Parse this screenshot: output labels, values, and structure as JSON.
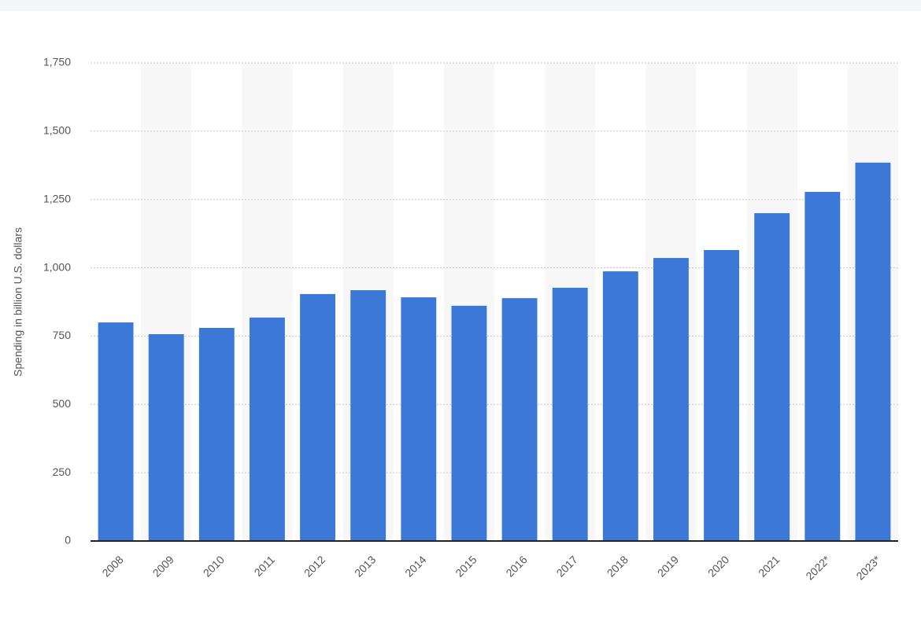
{
  "chart_data": {
    "type": "bar",
    "y_axis_label": "Spending in billion U.S. dollars",
    "categories": [
      "2008",
      "2009",
      "2010",
      "2011",
      "2012",
      "2013",
      "2014",
      "2015",
      "2016",
      "2017",
      "2018",
      "2019",
      "2020",
      "2021",
      "2022*",
      "2023*"
    ],
    "values": [
      800,
      757,
      780,
      818,
      904,
      918,
      892,
      861,
      889,
      927,
      987,
      1036,
      1065,
      1200,
      1278,
      1385
    ],
    "color": "#3c78d8",
    "ylim": [
      0,
      1750
    ],
    "yticks": [
      0,
      250,
      500,
      750,
      {
        "value": 1000,
        "label": "1,000"
      },
      {
        "value": 1250,
        "label": "1,250"
      },
      {
        "value": 1500,
        "label": "1,500"
      },
      {
        "value": 1750,
        "label": "1,750"
      }
    ],
    "grid": true
  }
}
